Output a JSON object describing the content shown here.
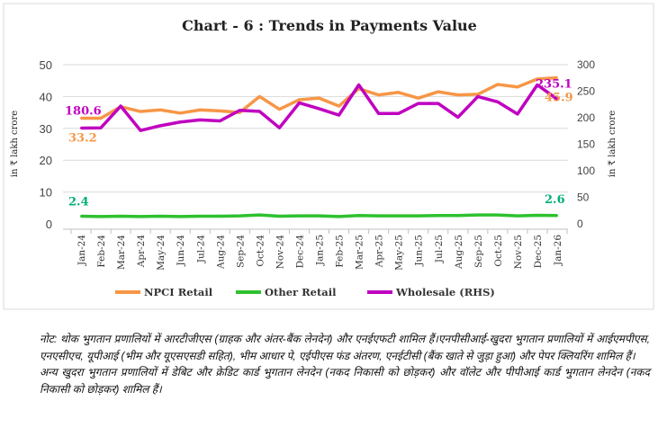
{
  "chart_data": {
    "type": "line",
    "title": "Chart - 6 : Trends in Payments Value",
    "ylabel": "in ₹ lakh crore",
    "ylabel_right": "in ₹ lakh crore",
    "ylim": [
      0,
      50
    ],
    "yticks": [
      0,
      10,
      20,
      30,
      40,
      50
    ],
    "ylim_right": [
      0,
      300
    ],
    "yticks_right": [
      0,
      50,
      100,
      150,
      200,
      250,
      300
    ],
    "grid": true,
    "legend": "bottom",
    "categories": [
      "Jan-24",
      "Feb-24",
      "Mar-24",
      "Apr-24",
      "May-24",
      "Jun-24",
      "Jul-24",
      "Aug-24",
      "Sep-24",
      "Oct-24",
      "Nov-24",
      "Dec-24",
      "Jan-25",
      "Feb-25",
      "Mar-25",
      "Apr-25",
      "May-25",
      "Jun-25",
      "Jul-25",
      "Aug-25",
      "Sep-25",
      "Oct-25",
      "Nov-25",
      "Dec-25",
      "Jan-26"
    ],
    "series": [
      {
        "name": "NPCI Retail",
        "axis": "left",
        "color": "#F79646",
        "values": [
          33.2,
          33.2,
          36.8,
          35.3,
          35.8,
          34.8,
          35.8,
          35.5,
          35.0,
          40.0,
          36.0,
          39.0,
          39.5,
          37.0,
          42.5,
          40.5,
          41.3,
          39.5,
          41.5,
          40.5,
          40.7,
          43.8,
          43.0,
          45.5,
          45.9
        ],
        "labels": [
          {
            "index": 0,
            "text": "33.2"
          },
          {
            "index": 24,
            "text": "45.9"
          }
        ]
      },
      {
        "name": "Other Retail",
        "axis": "left",
        "color": "#2EC12E",
        "values": [
          2.4,
          2.3,
          2.4,
          2.3,
          2.4,
          2.3,
          2.4,
          2.4,
          2.5,
          2.8,
          2.4,
          2.5,
          2.5,
          2.3,
          2.6,
          2.5,
          2.5,
          2.5,
          2.6,
          2.6,
          2.8,
          2.8,
          2.5,
          2.7,
          2.6
        ],
        "labels": [
          {
            "index": 0,
            "text": "2.4"
          },
          {
            "index": 24,
            "text": "2.6"
          }
        ]
      },
      {
        "name": "Wholesale (RHS)",
        "axis": "right",
        "color": "#C000C0",
        "values": [
          180.6,
          181,
          222,
          176,
          185,
          192,
          196,
          194,
          214,
          212,
          181,
          228,
          217,
          205,
          262,
          208,
          208,
          227,
          227,
          201,
          240,
          230,
          207,
          262,
          235.1
        ],
        "labels": [
          {
            "index": 0,
            "text": "180.6"
          },
          {
            "index": 24,
            "text": "235.1"
          }
        ]
      }
    ],
    "label_colors": {
      "NPCI Retail": "#F79646",
      "Other Retail": "#00B07A",
      "Wholesale (RHS)": "#C000C0"
    }
  },
  "note": {
    "line1": "नोट: थोक भुगतान प्रणालियों में आरटीजीएस (ग्राहक और अंतर-बैंक लेनदेन) और एनईएफटी शामिल हैं।एनपीसीआई-खुदरा भुगतान प्रणालियों में आईएमपीएस, एनएसीएच, यूपीआई (भीम और यूएसएसडी सहित), भीम आधार पे, एईपीएस फंड अंतरण, एनईटीसी (बैंक खाते से जुड़ा हुआ) और पेपर क्लियरिंग शामिल हैं।",
    "line2": "अन्य खुदरा भुगतान प्रणालियों में डेबिट और क्रेडिट कार्ड भुगतान लेनदेन (नकद निकासी को छोड़कर) और वॉलेट और पीपीआई कार्ड भुगतान लेनदेन (नकद निकासी को छोड़कर) शामिल हैं।"
  }
}
